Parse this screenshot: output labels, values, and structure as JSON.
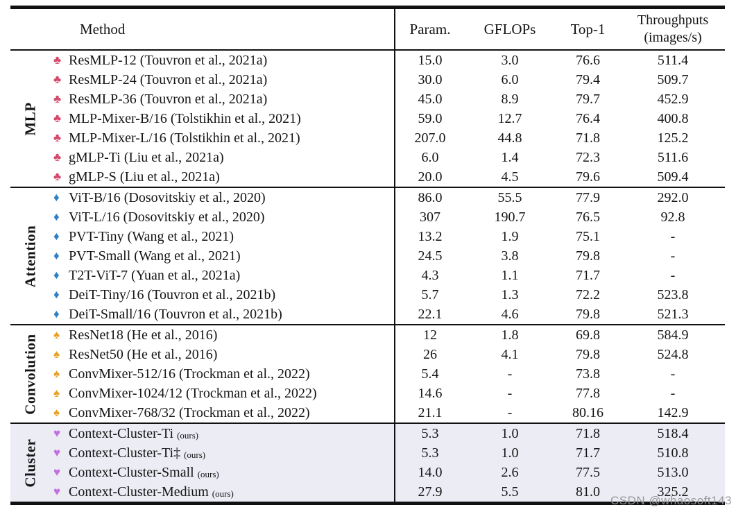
{
  "table": {
    "header": {
      "method": "Method",
      "param": "Param.",
      "gflops": "GFLOPs",
      "top1": "Top-1",
      "throughput_line1": "Throughputs",
      "throughput_line2": "(images/s)"
    },
    "icons": {
      "club": {
        "glyph": "♣",
        "color": "#d3496b"
      },
      "diamond": {
        "glyph": "♦",
        "color": "#2e7fc4"
      },
      "spade": {
        "glyph": "♠",
        "color": "#e6a226"
      },
      "heart": {
        "glyph": "♥",
        "color": "#c26fdf"
      }
    },
    "highlight_color": "#ebecf4",
    "sections": [
      {
        "label": "MLP",
        "icon": "club",
        "highlight": false,
        "rows": [
          {
            "method": "ResMLP-12 (Touvron et al., 2021a)",
            "note": "",
            "param": "15.0",
            "gflops": "3.0",
            "top1": "76.6",
            "throughput": "511.4"
          },
          {
            "method": "ResMLP-24 (Touvron et al., 2021a)",
            "note": "",
            "param": "30.0",
            "gflops": "6.0",
            "top1": "79.4",
            "throughput": "509.7"
          },
          {
            "method": "ResMLP-36 (Touvron et al., 2021a)",
            "note": "",
            "param": "45.0",
            "gflops": "8.9",
            "top1": "79.7",
            "throughput": "452.9"
          },
          {
            "method": "MLP-Mixer-B/16 (Tolstikhin et al., 2021)",
            "note": "",
            "param": "59.0",
            "gflops": "12.7",
            "top1": "76.4",
            "throughput": "400.8"
          },
          {
            "method": "MLP-Mixer-L/16 (Tolstikhin et al., 2021)",
            "note": "",
            "param": "207.0",
            "gflops": "44.8",
            "top1": "71.8",
            "throughput": "125.2"
          },
          {
            "method": "gMLP-Ti (Liu et al., 2021a)",
            "note": "",
            "param": "6.0",
            "gflops": "1.4",
            "top1": "72.3",
            "throughput": "511.6"
          },
          {
            "method": "gMLP-S (Liu et al., 2021a)",
            "note": "",
            "param": "20.0",
            "gflops": "4.5",
            "top1": "79.6",
            "throughput": "509.4"
          }
        ]
      },
      {
        "label": "Attention",
        "icon": "diamond",
        "highlight": false,
        "rows": [
          {
            "method": "ViT-B/16 (Dosovitskiy et al., 2020)",
            "note": "",
            "param": "86.0",
            "gflops": "55.5",
            "top1": "77.9",
            "throughput": "292.0"
          },
          {
            "method": "ViT-L/16 (Dosovitskiy et al., 2020)",
            "note": "",
            "param": "307",
            "gflops": "190.7",
            "top1": "76.5",
            "throughput": "92.8"
          },
          {
            "method": "PVT-Tiny (Wang et al., 2021)",
            "note": "",
            "param": "13.2",
            "gflops": "1.9",
            "top1": "75.1",
            "throughput": "-"
          },
          {
            "method": "PVT-Small (Wang et al., 2021)",
            "note": "",
            "param": "24.5",
            "gflops": "3.8",
            "top1": "79.8",
            "throughput": "-"
          },
          {
            "method": "T2T-ViT-7  (Yuan et al., 2021a)",
            "note": "",
            "param": "4.3",
            "gflops": "1.1",
            "top1": "71.7",
            "throughput": "-"
          },
          {
            "method": "DeiT-Tiny/16 (Touvron et al., 2021b)",
            "note": "",
            "param": "5.7",
            "gflops": "1.3",
            "top1": "72.2",
            "throughput": "523.8"
          },
          {
            "method": "DeiT-Small/16 (Touvron et al., 2021b)",
            "note": "",
            "param": "22.1",
            "gflops": "4.6",
            "top1": "79.8",
            "throughput": "521.3"
          }
        ]
      },
      {
        "label": "Convolution",
        "icon": "spade",
        "highlight": false,
        "rows": [
          {
            "method": "ResNet18 (He et al., 2016)",
            "note": "",
            "param": "12",
            "gflops": "1.8",
            "top1": "69.8",
            "throughput": "584.9"
          },
          {
            "method": "ResNet50 (He et al., 2016)",
            "note": "",
            "param": "26",
            "gflops": "4.1",
            "top1": "79.8",
            "throughput": "524.8"
          },
          {
            "method": "ConvMixer-512/16 (Trockman et al., 2022)",
            "note": "",
            "param": "5.4",
            "gflops": "-",
            "top1": "73.8",
            "throughput": "-"
          },
          {
            "method": "ConvMixer-1024/12 (Trockman et al., 2022)",
            "note": "",
            "param": "14.6",
            "gflops": "-",
            "top1": "77.8",
            "throughput": "-"
          },
          {
            "method": "ConvMixer-768/32 (Trockman et al., 2022)",
            "note": "",
            "param": "21.1",
            "gflops": "-",
            "top1": "80.16",
            "throughput": "142.9"
          }
        ]
      },
      {
        "label": "Cluster",
        "icon": "heart",
        "highlight": true,
        "rows": [
          {
            "method": "Context-Cluster-Ti",
            "note": "(ours)",
            "param": "5.3",
            "gflops": "1.0",
            "top1": "71.8",
            "throughput": "518.4"
          },
          {
            "method": "Context-Cluster-Ti‡",
            "note": "(ours)",
            "param": "5.3",
            "gflops": "1.0",
            "top1": "71.7",
            "throughput": "510.8"
          },
          {
            "method": "Context-Cluster-Small",
            "note": "(ours)",
            "param": "14.0",
            "gflops": "2.6",
            "top1": "77.5",
            "throughput": "513.0"
          },
          {
            "method": "Context-Cluster-Medium",
            "note": "(ours)",
            "param": "27.9",
            "gflops": "5.5",
            "top1": "81.0",
            "throughput": "325.2"
          }
        ]
      }
    ]
  },
  "watermark": "CSDN @whaosoft143"
}
